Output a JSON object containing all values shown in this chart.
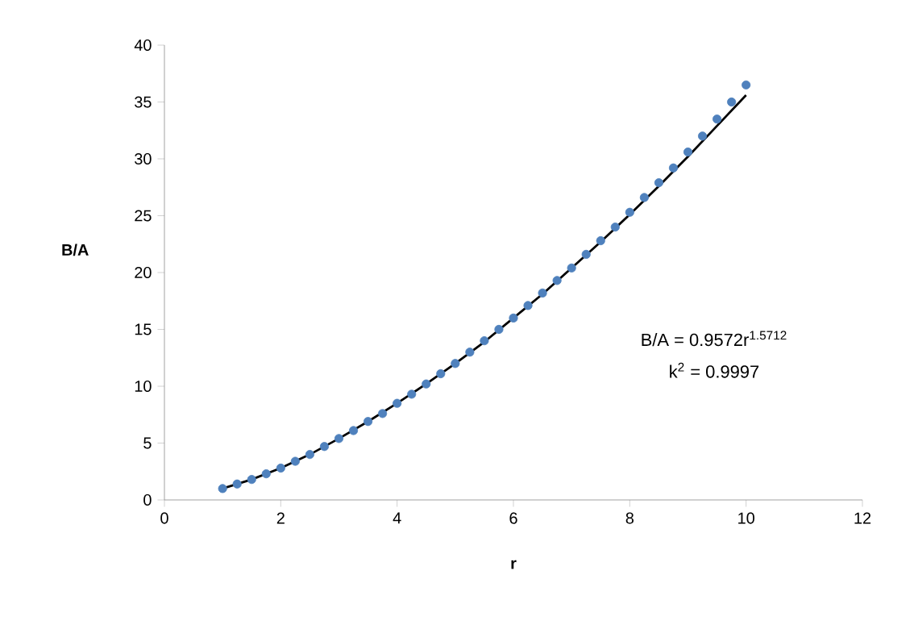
{
  "chart_data": {
    "type": "scatter",
    "xlabel": "r",
    "ylabel": "B/A",
    "annotations": [
      "B/A = 0.9572r$^{1.5712}$",
      "k$^{2}$ = 0.9997"
    ],
    "xlim": [
      0,
      12
    ],
    "xticks": [
      0,
      2,
      4,
      6,
      8,
      10,
      12
    ],
    "ylim": [
      0,
      40
    ],
    "yticks": [
      0,
      5,
      10,
      15,
      20,
      25,
      30,
      35,
      40
    ],
    "series": [
      {
        "marker": "circle",
        "color": "#4f81bd",
        "x": [
          1,
          1.25,
          1.5,
          1.75,
          2,
          2.25,
          2.5,
          2.75,
          3,
          3.25,
          3.5,
          3.75,
          4,
          4.25,
          4.5,
          4.75,
          5,
          5.25,
          5.5,
          5.75,
          6,
          6.25,
          6.5,
          6.75,
          7,
          7.25,
          7.5,
          7.75,
          8,
          8.25,
          8.5,
          8.75,
          9,
          9.25,
          9.5,
          9.75,
          10
        ],
        "values": [
          1.0,
          1.4,
          1.8,
          2.3,
          2.8,
          3.4,
          4.0,
          4.7,
          5.4,
          6.1,
          6.9,
          7.6,
          8.5,
          9.3,
          10.2,
          11.1,
          12.0,
          13.0,
          14.0,
          15.0,
          16.0,
          17.1,
          18.2,
          19.3,
          20.4,
          21.6,
          22.8,
          24.0,
          25.3,
          26.6,
          27.9,
          29.2,
          30.6,
          32.0,
          33.5,
          35.0,
          36.5
        ]
      },
      {
        "type": "line",
        "color": "#000000",
        "marker": "none",
        "x": [
          1,
          1.5,
          2,
          2.5,
          3,
          3.5,
          4,
          4.5,
          5,
          5.5,
          6,
          6.5,
          7,
          7.5,
          8,
          8.5,
          9,
          9.5,
          10
        ],
        "values": [
          1.0,
          1.8,
          2.8,
          4.0,
          5.4,
          6.9,
          8.5,
          10.2,
          12.0,
          13.9,
          16.0,
          18.1,
          20.4,
          22.7,
          25.1,
          27.6,
          30.2,
          32.9,
          35.6
        ]
      }
    ]
  }
}
